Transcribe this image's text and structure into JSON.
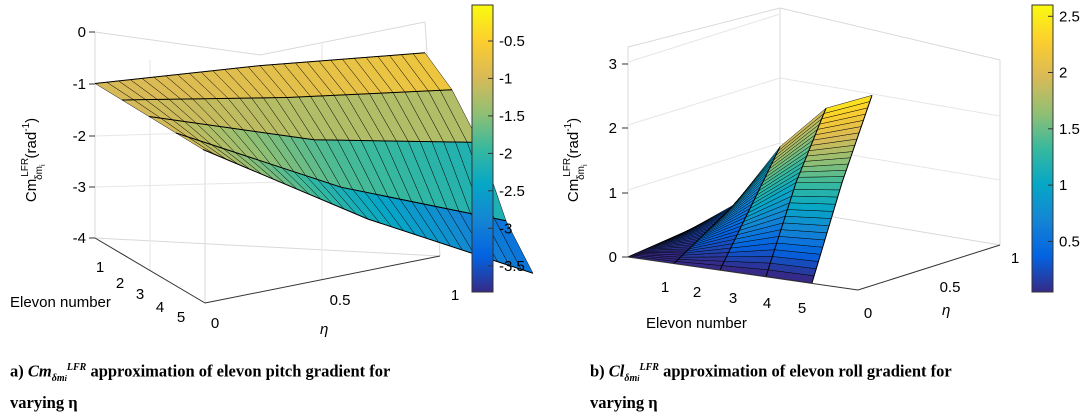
{
  "charts": [
    {
      "id": "a",
      "caption_prefix": "a) ",
      "caption_symbol": "Cm",
      "caption_sub": "δm",
      "caption_sub_i": "i",
      "caption_sup": "LFR",
      "caption_line1": " approximation of elevon pitch gradient for",
      "caption_line2": "varying η"
    },
    {
      "id": "b",
      "caption_prefix": "b) ",
      "caption_symbol": "Cl",
      "caption_sub": "δm",
      "caption_sub_i": "i",
      "caption_sup": "LFR",
      "caption_line1": " approximation of elevon roll gradient for",
      "caption_line2": "varying η"
    }
  ],
  "chart_data": [
    {
      "type": "surface",
      "zlabel": "Cm",
      "zlabel_sup": "LFR",
      "zlabel_sub": "δm",
      "zlabel_sub_i": "i",
      "zlabel_unit": "(rad",
      "zlabel_unit_sup": "-1",
      "zlabel_unit_close": ")",
      "xlabel": "Elevon number",
      "ylabel": "η",
      "x_ticks": [
        "1",
        "2",
        "3",
        "4",
        "5"
      ],
      "y_ticks": [
        "0",
        "0.5",
        "1"
      ],
      "z_ticks": [
        "0",
        "-1",
        "-2",
        "-3",
        "-4"
      ],
      "zlim": [
        -4,
        0
      ],
      "elevons": [
        1,
        2,
        3,
        4,
        5
      ],
      "eta": [
        0,
        0.5,
        1
      ],
      "z": [
        [
          -1.0,
          -0.7,
          -0.5
        ],
        [
          -1.0,
          -1.0,
          -0.9
        ],
        [
          -1.0,
          -1.5,
          -1.6
        ],
        [
          -1.0,
          -2.1,
          -2.8
        ],
        [
          -1.0,
          -2.4,
          -3.5
        ]
      ],
      "colorbar_ticks": [
        "-0.5",
        "-1",
        "-1.5",
        "-2",
        "-2.5",
        "-3",
        "-3.5"
      ],
      "colorbar_values": [
        -0.5,
        -1,
        -1.5,
        -2,
        -2.5,
        -3,
        -3.5
      ],
      "clim": [
        -3.85,
        -0.02
      ],
      "colormap": "parula",
      "edge_color": "#000000"
    },
    {
      "type": "surface",
      "zlabel": "Cm",
      "zlabel_sup": "LFR",
      "zlabel_sub": "δm",
      "zlabel_sub_i": "i",
      "zlabel_unit": "(rad",
      "zlabel_unit_sup": "-1",
      "zlabel_unit_close": ")",
      "xlabel": "Elevon number",
      "ylabel": "η",
      "x_ticks": [
        "1",
        "2",
        "3",
        "4",
        "5"
      ],
      "y_ticks": [
        "0",
        "0.5",
        "1"
      ],
      "z_ticks": [
        "0",
        "1",
        "2",
        "3"
      ],
      "zlim": [
        0,
        3
      ],
      "elevons": [
        1,
        2,
        3,
        4,
        5
      ],
      "eta": [
        0,
        0.5,
        1
      ],
      "z": [
        [
          0.0,
          0.05,
          0.1
        ],
        [
          0.0,
          0.3,
          0.6
        ],
        [
          0.0,
          0.8,
          1.6
        ],
        [
          0.0,
          1.3,
          2.3
        ],
        [
          0.0,
          1.4,
          2.6
        ]
      ],
      "colorbar_ticks": [
        "0.5",
        "1",
        "1.5",
        "2",
        "2.5"
      ],
      "colorbar_values": [
        0.5,
        1,
        1.5,
        2,
        2.5
      ],
      "clim": [
        0.05,
        2.6
      ],
      "colormap": "parula",
      "edge_color": "#000000"
    }
  ]
}
